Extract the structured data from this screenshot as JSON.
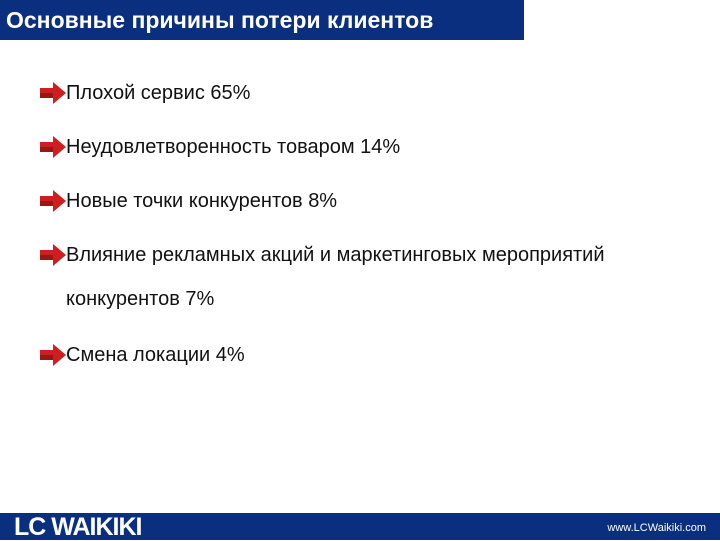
{
  "title": "Основные причины потери клиентов",
  "bullets": [
    "Плохой сервис 65%",
    "Неудовлетворенность товаром 14%",
    "Новые точки конкурентов 8%",
    "Влияние рекламных акций и маркетинговых мероприятий",
    "Смена локации 4%"
  ],
  "bullet_continuation": "конкурентов 7%",
  "footer": {
    "logo_text": "LC WAIKIKI",
    "url": "www.LCWaikiki.com"
  },
  "colors": {
    "brand_blue": "#0a2f7f",
    "bullet_red": "#cc1f1f"
  }
}
